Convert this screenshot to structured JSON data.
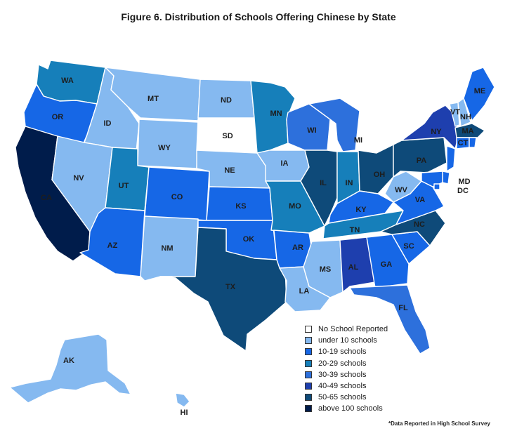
{
  "title": "Figure 6. Distribution of Schools Offering Chinese by State",
  "footnote": "*Data Reported in High School Survey",
  "colors": {
    "none": "#ffffff",
    "under10": "#85b9f0",
    "c10_19": "#1667e6",
    "c20_29": "#167fba",
    "c30_39": "#2d70dc",
    "c40_49": "#1e3fae",
    "c50_65": "#0e4a79",
    "over100": "#001c4b"
  },
  "legend": [
    {
      "key": "none",
      "label": "No School Reported"
    },
    {
      "key": "under10",
      "label": "under 10 schools"
    },
    {
      "key": "c10_19",
      "label": "10-19 schools"
    },
    {
      "key": "c20_29",
      "label": "20-29 schools"
    },
    {
      "key": "c30_39",
      "label": "30-39 schools"
    },
    {
      "key": "c40_49",
      "label": "40-49 schools"
    },
    {
      "key": "c50_65",
      "label": "50-65 schools"
    },
    {
      "key": "over100",
      "label": "above 100 schools"
    }
  ],
  "states": {
    "WA": {
      "label": "WA",
      "category": "c20_29"
    },
    "OR": {
      "label": "OR",
      "category": "c10_19"
    },
    "CA": {
      "label": "CA",
      "category": "over100"
    },
    "ID": {
      "label": "ID",
      "category": "under10"
    },
    "NV": {
      "label": "NV",
      "category": "under10"
    },
    "MT": {
      "label": "MT",
      "category": "under10"
    },
    "WY": {
      "label": "WY",
      "category": "under10"
    },
    "UT": {
      "label": "UT",
      "category": "c20_29"
    },
    "AZ": {
      "label": "AZ",
      "category": "c10_19"
    },
    "CO": {
      "label": "CO",
      "category": "c10_19"
    },
    "NM": {
      "label": "NM",
      "category": "under10"
    },
    "ND": {
      "label": "ND",
      "category": "under10"
    },
    "SD": {
      "label": "SD",
      "category": "none"
    },
    "NE": {
      "label": "NE",
      "category": "under10"
    },
    "KS": {
      "label": "KS",
      "category": "c10_19"
    },
    "OK": {
      "label": "OK",
      "category": "c10_19"
    },
    "TX": {
      "label": "TX",
      "category": "c50_65"
    },
    "MN": {
      "label": "MN",
      "category": "c20_29"
    },
    "IA": {
      "label": "IA",
      "category": "under10"
    },
    "MO": {
      "label": "MO",
      "category": "c20_29"
    },
    "AR": {
      "label": "AR",
      "category": "c10_19"
    },
    "LA": {
      "label": "LA",
      "category": "under10"
    },
    "WI": {
      "label": "WI",
      "category": "c30_39"
    },
    "IL": {
      "label": "IL",
      "category": "c50_65"
    },
    "MI": {
      "label": "MI",
      "category": "c30_39"
    },
    "IN": {
      "label": "IN",
      "category": "c20_29"
    },
    "OH": {
      "label": "OH",
      "category": "c50_65"
    },
    "KY": {
      "label": "KY",
      "category": "c10_19"
    },
    "TN": {
      "label": "TN",
      "category": "c20_29"
    },
    "MS": {
      "label": "MS",
      "category": "under10"
    },
    "AL": {
      "label": "AL",
      "category": "c40_49"
    },
    "GA": {
      "label": "GA",
      "category": "c10_19"
    },
    "FL": {
      "label": "FL",
      "category": "c30_39"
    },
    "SC": {
      "label": "SC",
      "category": "c10_19"
    },
    "NC": {
      "label": "NC",
      "category": "c50_65"
    },
    "VA": {
      "label": "VA",
      "category": "c10_19"
    },
    "WV": {
      "label": "WV",
      "category": "under10"
    },
    "PA": {
      "label": "PA",
      "category": "c50_65"
    },
    "NY": {
      "label": "NY",
      "category": "c40_49"
    },
    "VT": {
      "label": "VT",
      "category": "under10"
    },
    "NH": {
      "label": "NH",
      "category": "under10"
    },
    "ME": {
      "label": "ME",
      "category": "c10_19"
    },
    "MA": {
      "label": "MA",
      "category": "c50_65"
    },
    "CT": {
      "label": "CT",
      "category": "c10_19"
    },
    "RI": {
      "label": "",
      "category": "c10_19"
    },
    "NJ": {
      "label": "",
      "category": "c10_19"
    },
    "DE": {
      "label": "",
      "category": "c10_19"
    },
    "MD": {
      "label": "MD",
      "category": "c10_19"
    },
    "DC": {
      "label": "DC",
      "category": "c10_19"
    },
    "AK": {
      "label": "AK",
      "category": "under10"
    },
    "HI": {
      "label": "HI",
      "category": "under10"
    }
  }
}
